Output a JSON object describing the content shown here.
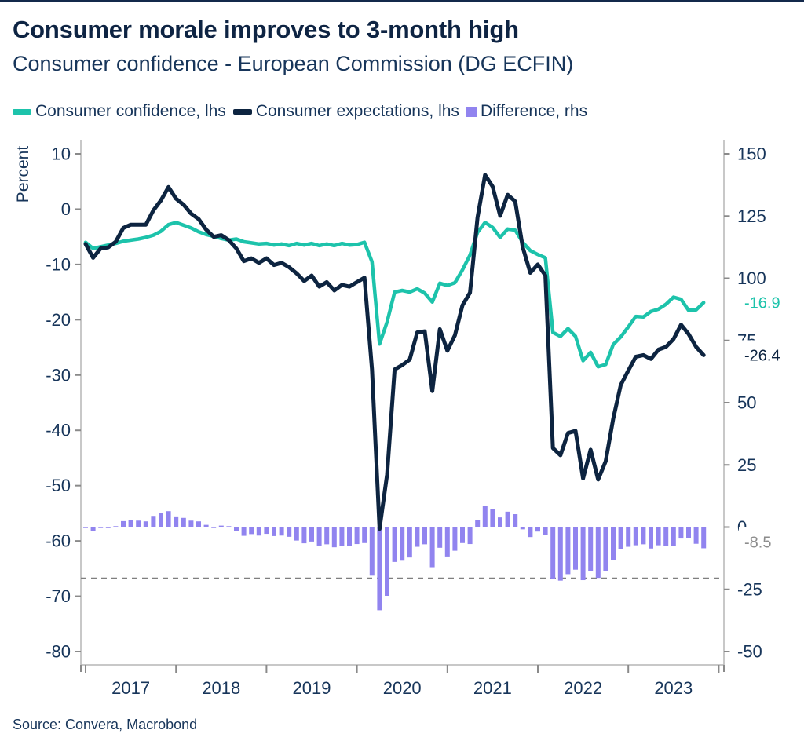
{
  "header": {
    "title": "Consumer morale improves to 3-month high",
    "subtitle": "Consumer confidence - European Commission (DG ECFIN)"
  },
  "legend": {
    "items": [
      {
        "label": "Consumer confidence, lhs",
        "color": "#1dc3ab",
        "shape": "line"
      },
      {
        "label": "Consumer expectations, lhs",
        "color": "#0d2440",
        "shape": "line"
      },
      {
        "label": "Difference, rhs",
        "color": "#9184ef",
        "shape": "square"
      }
    ]
  },
  "chart_data": {
    "type": "line+bar",
    "x_start": "2017-01",
    "x_end": "2023-11",
    "x_freq": "monthly",
    "x_tick_labels": [
      "2017",
      "2018",
      "2019",
      "2020",
      "2021",
      "2022",
      "2023"
    ],
    "left_axis": {
      "label": "Percent",
      "min": -80,
      "max": 10,
      "tick_step": 10,
      "ticks": [
        10,
        0,
        -10,
        -20,
        -30,
        -40,
        -50,
        -60,
        -70,
        -80
      ]
    },
    "right_axis": {
      "min": -50,
      "max": 150,
      "tick_step": 25,
      "ticks": [
        150,
        125,
        100,
        75,
        50,
        25,
        0,
        -25,
        -50
      ]
    },
    "series": [
      {
        "name": "Consumer confidence, lhs",
        "axis": "left",
        "color": "#1dc3ab",
        "end_label": "-16.9",
        "values": [
          -6.0,
          -7.1,
          -6.8,
          -6.5,
          -6.2,
          -5.8,
          -5.6,
          -5.4,
          -5.1,
          -4.7,
          -4.0,
          -2.8,
          -2.4,
          -2.9,
          -3.4,
          -4.1,
          -4.6,
          -4.9,
          -5.3,
          -5.6,
          -5.4,
          -5.9,
          -6.1,
          -6.3,
          -6.2,
          -6.5,
          -6.3,
          -6.6,
          -6.2,
          -6.5,
          -6.2,
          -6.6,
          -6.3,
          -6.6,
          -6.2,
          -6.5,
          -6.4,
          -6.0,
          -9.5,
          -24.4,
          -20.4,
          -15.0,
          -14.7,
          -15.0,
          -14.4,
          -15.2,
          -16.8,
          -13.4,
          -13.8,
          -13.3,
          -11.0,
          -8.3,
          -4.2,
          -2.4,
          -3.3,
          -5.1,
          -3.6,
          -3.8,
          -6.0,
          -7.5,
          -8.2,
          -8.8,
          -22.3,
          -23.0,
          -21.6,
          -23.0,
          -27.4,
          -25.9,
          -28.5,
          -28.1,
          -24.5,
          -23.1,
          -21.3,
          -19.4,
          -19.5,
          -18.5,
          -18.1,
          -17.2,
          -15.9,
          -16.3,
          -18.3,
          -18.2,
          -16.9
        ]
      },
      {
        "name": "Consumer expectations, lhs",
        "axis": "left",
        "color": "#0d2440",
        "end_label": "-26.4",
        "values": [
          -6.3,
          -8.8,
          -7.1,
          -6.9,
          -5.9,
          -3.4,
          -2.8,
          -2.8,
          -2.8,
          -0.2,
          1.6,
          4.0,
          1.9,
          0.8,
          -0.8,
          -1.8,
          -3.7,
          -5.0,
          -4.7,
          -5.6,
          -7.1,
          -9.4,
          -8.9,
          -9.7,
          -8.9,
          -10.1,
          -9.7,
          -10.5,
          -11.6,
          -13.0,
          -12.0,
          -14.0,
          -13.2,
          -14.7,
          -13.7,
          -14.0,
          -13.2,
          -12.4,
          -29.0,
          -57.8,
          -48.0,
          -29.0,
          -28.2,
          -27.2,
          -22.3,
          -22.1,
          -32.9,
          -21.7,
          -25.6,
          -22.8,
          -17.4,
          -15.1,
          -1.5,
          6.2,
          4.1,
          -1.2,
          2.6,
          1.4,
          -6.9,
          -11.5,
          -10.0,
          -12.0,
          -43.2,
          -44.5,
          -40.5,
          -40.1,
          -48.7,
          -43.5,
          -48.9,
          -45.6,
          -37.9,
          -31.8,
          -29.2,
          -26.7,
          -26.4,
          -27.1,
          -25.4,
          -24.9,
          -23.5,
          -20.9,
          -22.6,
          -24.9,
          -26.4
        ]
      }
    ],
    "bars": {
      "name": "Difference, rhs",
      "axis": "right",
      "color": "#9184ef",
      "end_label": "-8.5",
      "end_label_color": "#8c8c8c",
      "values": [
        -0.3,
        -1.7,
        -0.3,
        -0.4,
        0.3,
        2.4,
        2.8,
        2.6,
        2.3,
        4.5,
        5.6,
        6.4,
        4.3,
        3.7,
        2.6,
        2.3,
        0.9,
        -0.1,
        0.6,
        0.0,
        -1.7,
        -3.5,
        -2.8,
        -3.4,
        -2.7,
        -3.6,
        -3.4,
        -3.9,
        -5.4,
        -6.5,
        -5.8,
        -7.4,
        -6.9,
        -8.1,
        -7.5,
        -7.5,
        -6.8,
        -6.4,
        -19.5,
        -33.4,
        -27.6,
        -14.0,
        -13.5,
        -12.2,
        -7.9,
        -6.9,
        -16.1,
        -8.3,
        -11.8,
        -9.5,
        -6.4,
        -6.8,
        2.7,
        8.6,
        7.4,
        3.9,
        6.2,
        5.2,
        -0.9,
        -4.0,
        -1.8,
        -3.2,
        -20.9,
        -21.5,
        -18.9,
        -17.1,
        -21.3,
        -17.6,
        -20.4,
        -17.5,
        -13.4,
        -8.7,
        -7.9,
        -7.3,
        -6.9,
        -8.6,
        -7.3,
        -7.7,
        -7.6,
        -4.6,
        -4.3,
        -6.7,
        -8.5
      ]
    },
    "reference_line": {
      "axis": "right",
      "value": -20.6,
      "style": "dashed",
      "color": "#7f7f7f"
    },
    "style": {
      "axis_text_color": "#17355a",
      "axis_line_color": "#b5b5b5",
      "tick_color": "#8a8a8a"
    }
  },
  "footer": {
    "source": "Source: Convera, Macrobond"
  }
}
